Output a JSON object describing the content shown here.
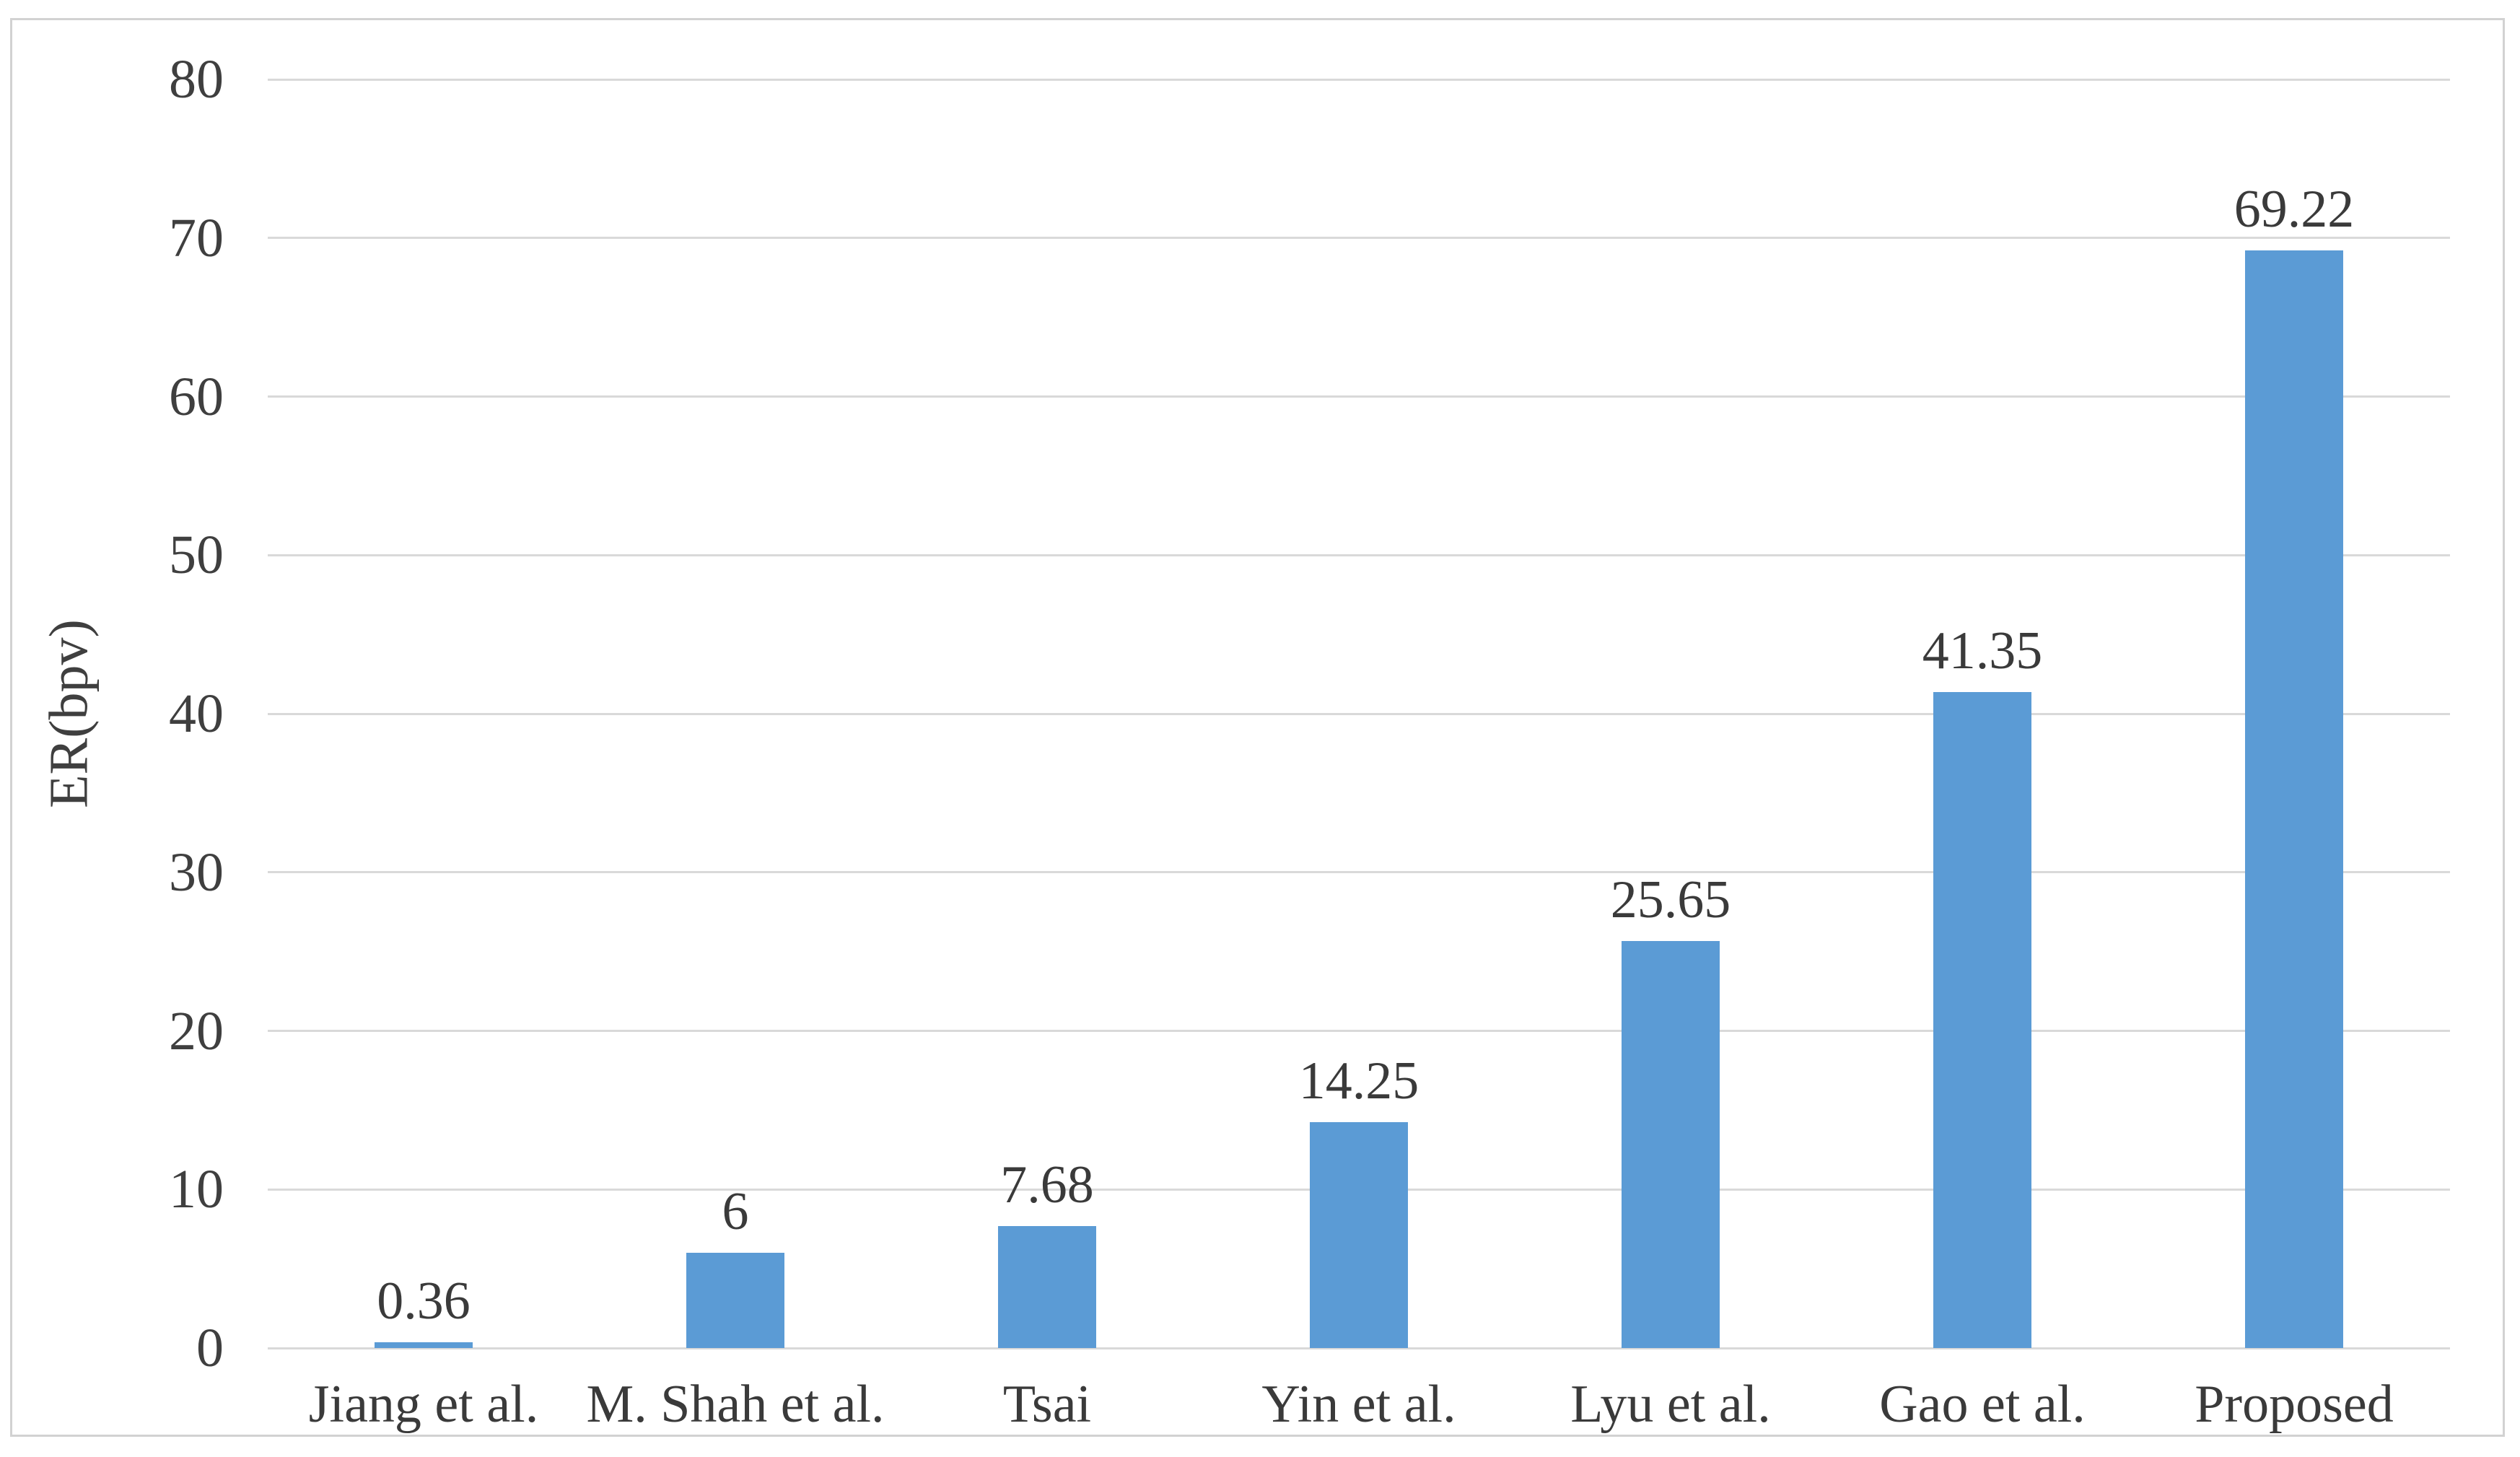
{
  "chart_data": {
    "type": "bar",
    "title": "",
    "categories": [
      "Jiang et al.",
      "M. Shah et al.",
      "Tsai",
      "Yin et al.",
      "Lyu et al.",
      "Gao et al.",
      "Proposed"
    ],
    "values": [
      0.36,
      6,
      7.68,
      14.25,
      25.65,
      41.35,
      69.22
    ],
    "value_labels": [
      "0.36",
      "6",
      "7.68",
      "14.25",
      "25.65",
      "41.35",
      "69.22"
    ],
    "xlabel": "",
    "ylabel": "ER(bpv)",
    "ylim": [
      0,
      80
    ],
    "yticks": [
      0,
      10,
      20,
      30,
      40,
      50,
      60,
      70,
      80
    ],
    "grid": "horizontal-gridlines",
    "legend": "none",
    "colors": {
      "bar": "#5B9BD5",
      "gridline": "#D9D9D9",
      "text": "#3F3F3F",
      "frame_border": "#D2D2D2",
      "background": "#FFFFFF"
    }
  }
}
